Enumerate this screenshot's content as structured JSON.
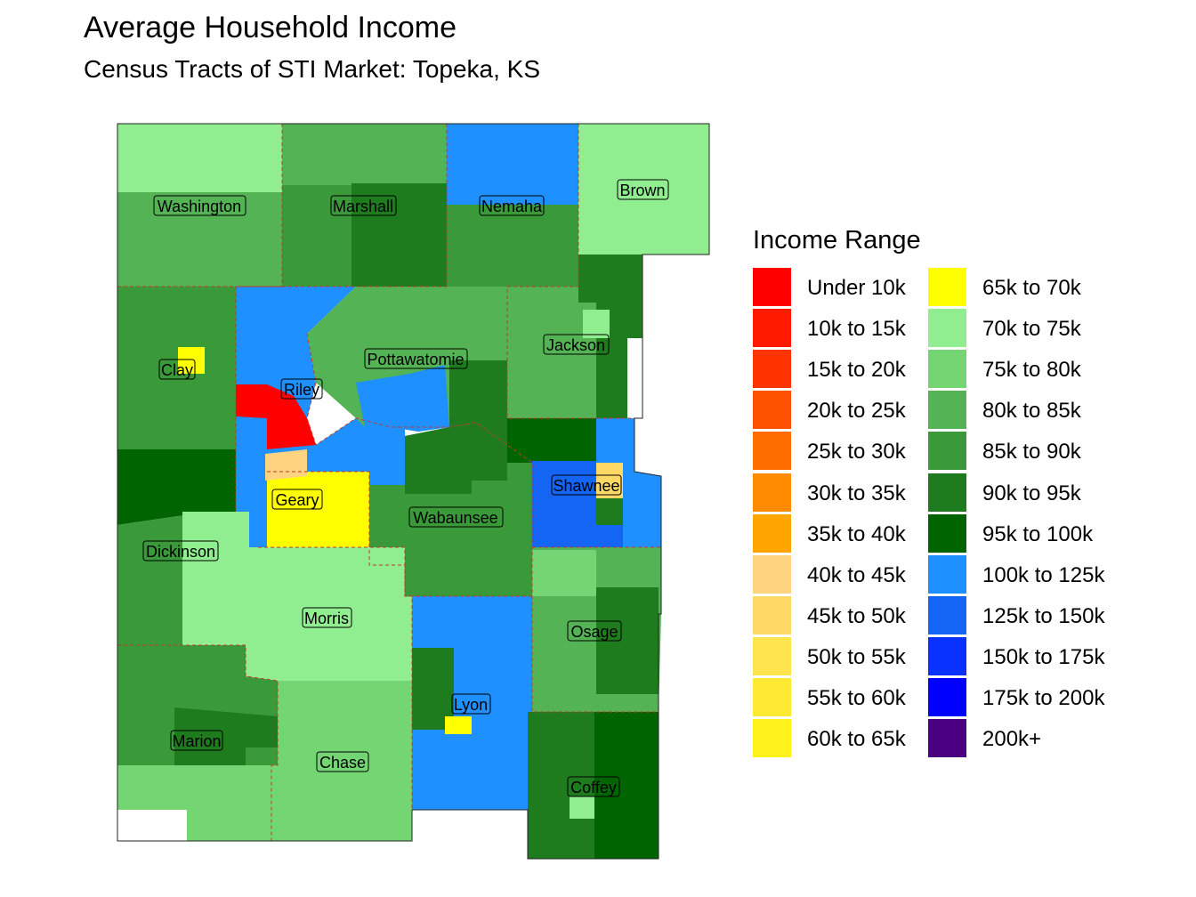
{
  "header": {
    "title": "Average Household Income",
    "subtitle": "Census Tracts of STI Market: Topeka, KS"
  },
  "legend": {
    "title": "Income Range",
    "items": [
      {
        "label": "Under 10k",
        "color": "#FF0000"
      },
      {
        "label": "10k to 15k",
        "color": "#FF1A00"
      },
      {
        "label": "15k to 20k",
        "color": "#FF3300"
      },
      {
        "label": "20k to 25k",
        "color": "#FF5200"
      },
      {
        "label": "25k to 30k",
        "color": "#FF6E00"
      },
      {
        "label": "30k to 35k",
        "color": "#FF8C00"
      },
      {
        "label": "35k to 40k",
        "color": "#FFA500"
      },
      {
        "label": "40k to 45k",
        "color": "#FFD480"
      },
      {
        "label": "45k to 50k",
        "color": "#FFD966"
      },
      {
        "label": "50k to 55k",
        "color": "#FFE44D"
      },
      {
        "label": "55k to 60k",
        "color": "#FFEA33"
      },
      {
        "label": "60k to 65k",
        "color": "#FFF21A"
      },
      {
        "label": "65k to 70k",
        "color": "#FFFF00"
      },
      {
        "label": "70k to 75k",
        "color": "#90EE90"
      },
      {
        "label": "75k to 80k",
        "color": "#73D673"
      },
      {
        "label": "80k to 85k",
        "color": "#54B354"
      },
      {
        "label": "85k to 90k",
        "color": "#3A9A3A"
      },
      {
        "label": "90k to 95k",
        "color": "#1E7B1E"
      },
      {
        "label": "95k to 100k",
        "color": "#006400"
      },
      {
        "label": "100k to 125k",
        "color": "#1E90FF"
      },
      {
        "label": "125k to 150k",
        "color": "#1565F5"
      },
      {
        "label": "150k to 175k",
        "color": "#0A32FF"
      },
      {
        "label": "175k to 200k",
        "color": "#0000FF"
      },
      {
        "label": "200k+",
        "color": "#4B0082"
      }
    ]
  },
  "counties": [
    {
      "name": "Washington",
      "income_range": "80k to 85k"
    },
    {
      "name": "Marshall",
      "income_range": "85k to 90k"
    },
    {
      "name": "Nemaha",
      "income_range": "85k to 90k"
    },
    {
      "name": "Brown",
      "income_range": "70k to 75k"
    },
    {
      "name": "Clay",
      "income_range": "85k to 90k"
    },
    {
      "name": "Riley",
      "income_range": "100k to 125k"
    },
    {
      "name": "Pottawatomie",
      "income_range": "80k to 85k"
    },
    {
      "name": "Jackson",
      "income_range": "80k to 85k"
    },
    {
      "name": "Geary",
      "income_range": "65k to 70k"
    },
    {
      "name": "Wabaunsee",
      "income_range": "85k to 90k"
    },
    {
      "name": "Shawnee",
      "income_range": "125k to 150k"
    },
    {
      "name": "Dickinson",
      "income_range": "70k to 75k"
    },
    {
      "name": "Morris",
      "income_range": "70k to 75k"
    },
    {
      "name": "Osage",
      "income_range": "80k to 85k"
    },
    {
      "name": "Lyon",
      "income_range": "100k to 125k"
    },
    {
      "name": "Marion",
      "income_range": "85k to 90k"
    },
    {
      "name": "Chase",
      "income_range": "75k to 80k"
    },
    {
      "name": "Coffey",
      "income_range": "90k to 95k"
    }
  ]
}
